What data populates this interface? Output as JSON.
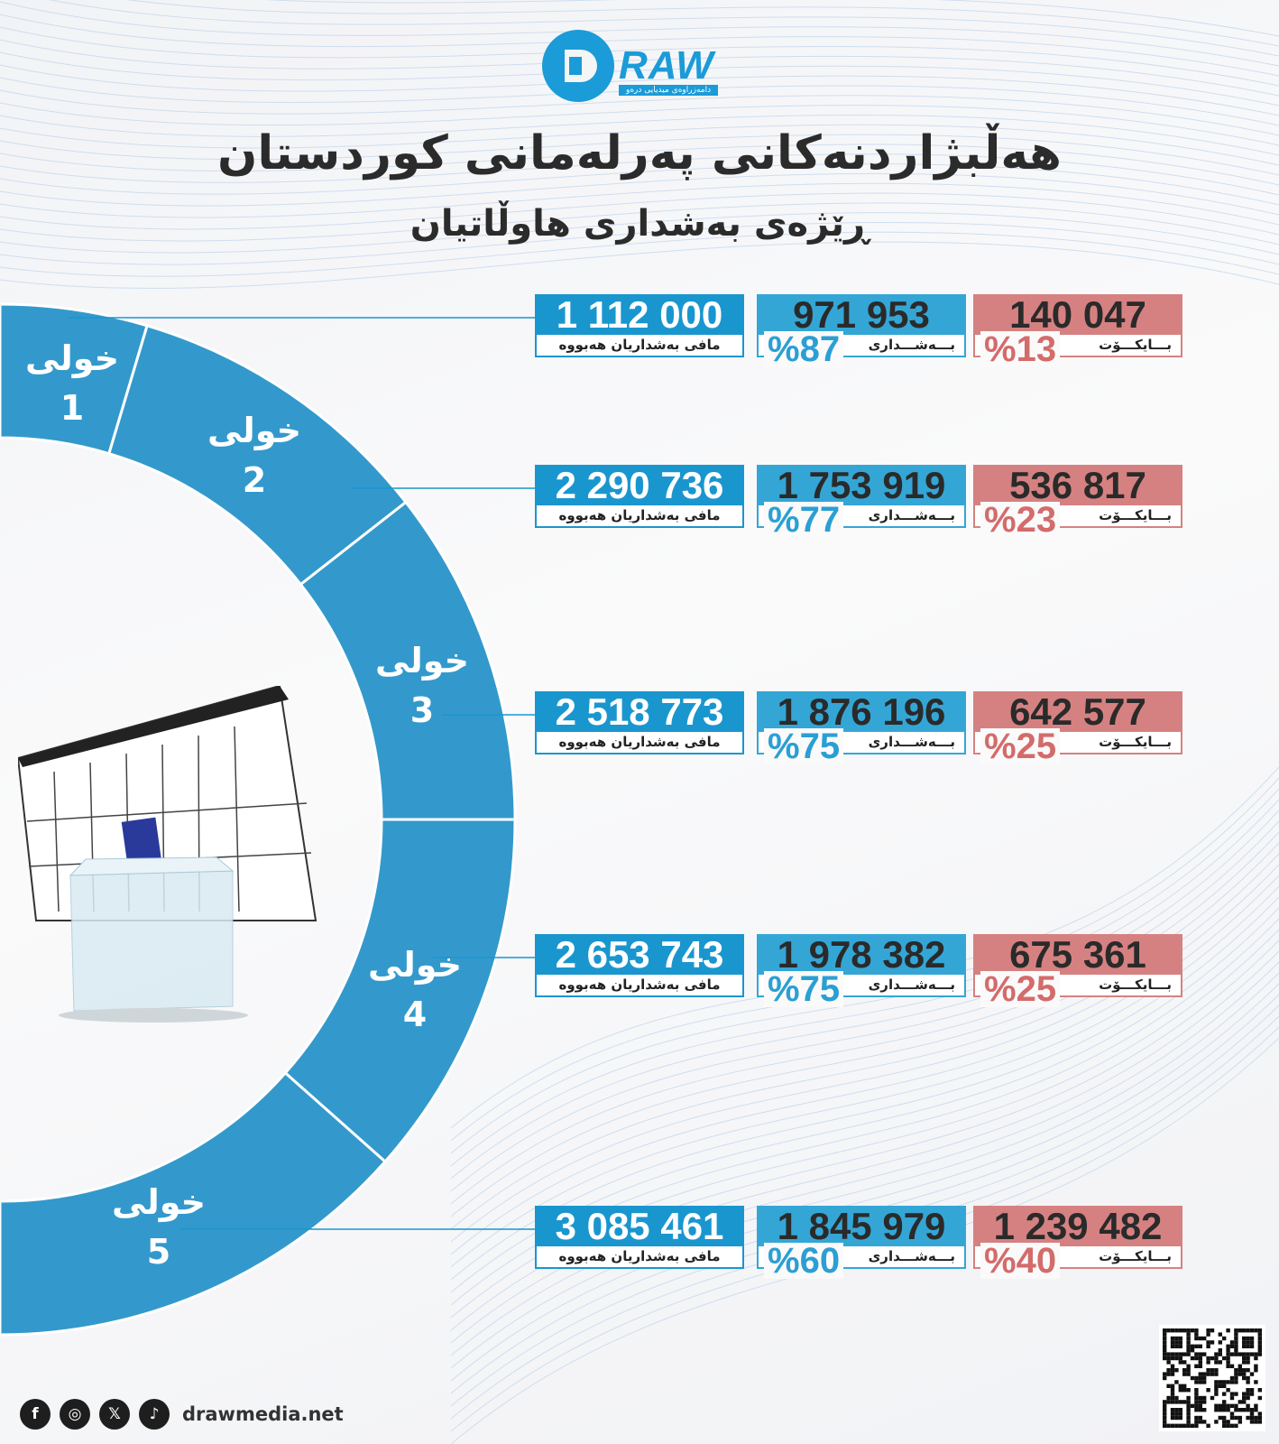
{
  "logo": {
    "text": "RAW",
    "letter": "D",
    "subtitle": "دامەزراوەی میدیایی درەو"
  },
  "title": "هەڵبژاردنەكانی پەرلەمانی كوردستان",
  "subtitle": "ڕێژەی بەشداری هاوڵاتیان",
  "colors": {
    "eligible": "#1a96cf",
    "participation": "#34a6d6",
    "boycott": "#d68181",
    "ring": "#3399cc"
  },
  "eligible_label": "مافی بەشداریان هەبووە",
  "participation_label": "بـــەشـــداری",
  "boycott_label": "بـــایكـــۆت",
  "rounds": [
    {
      "label": "خولی",
      "number": "1",
      "eligible": "1 112 000",
      "participation": "971 953",
      "participation_pct": "%87",
      "boycott": "140 047",
      "boycott_pct": "%13"
    },
    {
      "label": "خولی",
      "number": "2",
      "eligible": "2 290 736",
      "participation": "1 753 919",
      "participation_pct": "%77",
      "boycott": "536 817",
      "boycott_pct": "%23"
    },
    {
      "label": "خولی",
      "number": "3",
      "eligible": "2 518 773",
      "participation": "1 876 196",
      "participation_pct": "%75",
      "boycott": "642 577",
      "boycott_pct": "%25"
    },
    {
      "label": "خولی",
      "number": "4",
      "eligible": "2 653 743",
      "participation": "1 978 382",
      "participation_pct": "%75",
      "boycott": "675 361",
      "boycott_pct": "%25"
    },
    {
      "label": "خولی",
      "number": "5",
      "eligible": "3 085 461",
      "participation": "1 845 979",
      "participation_pct": "%60",
      "boycott": "1 239 482",
      "boycott_pct": "%40"
    }
  ],
  "footer": {
    "icons": [
      "facebook-icon",
      "instagram-icon",
      "x-icon",
      "tiktok-icon",
      "qr-code"
    ],
    "website": "drawmedia.net"
  }
}
